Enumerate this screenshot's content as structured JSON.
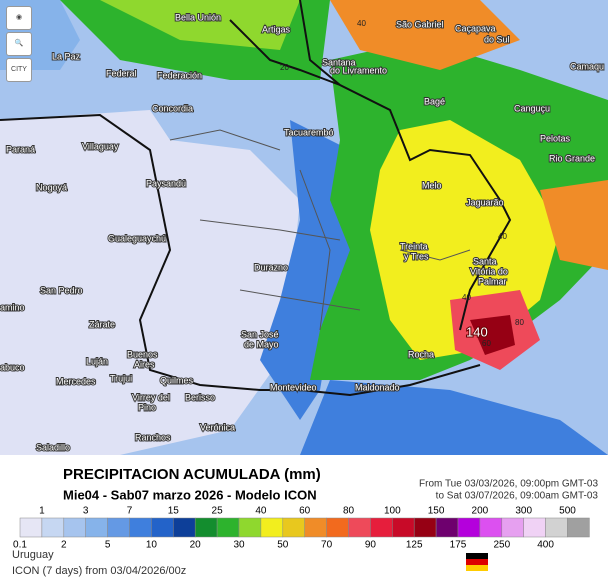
{
  "toolbar": {
    "city_button": "CITY"
  },
  "map": {
    "places": [
      "Bella Unión",
      "Artigas",
      "São Gabriel",
      "Caçapava",
      "do Sul",
      "Camaqu",
      "La Paz",
      "Federal",
      "Federación",
      "Santana",
      "do Livramento",
      "Bagé",
      "Canguçu",
      "Concordia",
      "Tacuarembó",
      "Pelotas",
      "Paraná",
      "Villaguay",
      "Rio Grande",
      "Nogoyá",
      "Paysandú",
      "Melo",
      "Jaguarão",
      "Gualeguaychú",
      "Treinta",
      "y Tres",
      "Durazno",
      "Santa",
      "Vitória do",
      "Palmar",
      "San Pedro",
      "amino",
      "Zárate",
      "San José",
      "de Mayo",
      "Rocha",
      "Buenos",
      "Luján",
      "Aires",
      "abuco",
      "Mercedes",
      "Trujui",
      "Quilmes",
      "Montevideo",
      "Maldonado",
      "Virrey del",
      "Pino",
      "Berisso",
      "Verónica",
      "Ranchos",
      "Saladillo"
    ],
    "contours": [
      "40",
      "20",
      "40",
      "40",
      "140",
      "80",
      "60"
    ]
  },
  "header": {
    "title": "PRECIPITACION ACUMULADA (mm)",
    "subtitle": "Mie04 - Sab07 marzo 2026 - Modelo ICON",
    "run_from": "From Tue 03/03/2026, 09:00pm GMT-03",
    "run_to": "to Sat 03/07/2026, 09:00am GMT-03"
  },
  "legend": {
    "colors": [
      "#e6e6f5",
      "#c6d7f2",
      "#a6c4ee",
      "#86b3ea",
      "#6499e4",
      "#3f7fdd",
      "#2363c9",
      "#0d3f99",
      "#138d2e",
      "#2db32d",
      "#8fd82e",
      "#f2ee1e",
      "#e8c81e",
      "#f08c28",
      "#f26a1e",
      "#ee4a5a",
      "#e61e3c",
      "#c80a28",
      "#960014",
      "#6e006e",
      "#b400dc",
      "#dc50f0",
      "#e6a0f0",
      "#f0d2f5",
      "#d2d2d2",
      "#a0a0a0"
    ],
    "ticks_upper": [
      1,
      3,
      7,
      15,
      25,
      40,
      60,
      80,
      100,
      150,
      200,
      300,
      500
    ],
    "ticks_lower": [
      0.1,
      2,
      5,
      10,
      20,
      30,
      50,
      70,
      90,
      125,
      175,
      250,
      400
    ]
  },
  "footer": {
    "region": "Uruguay",
    "model": "ICON (7 days) from 03/04/2026/00z"
  }
}
